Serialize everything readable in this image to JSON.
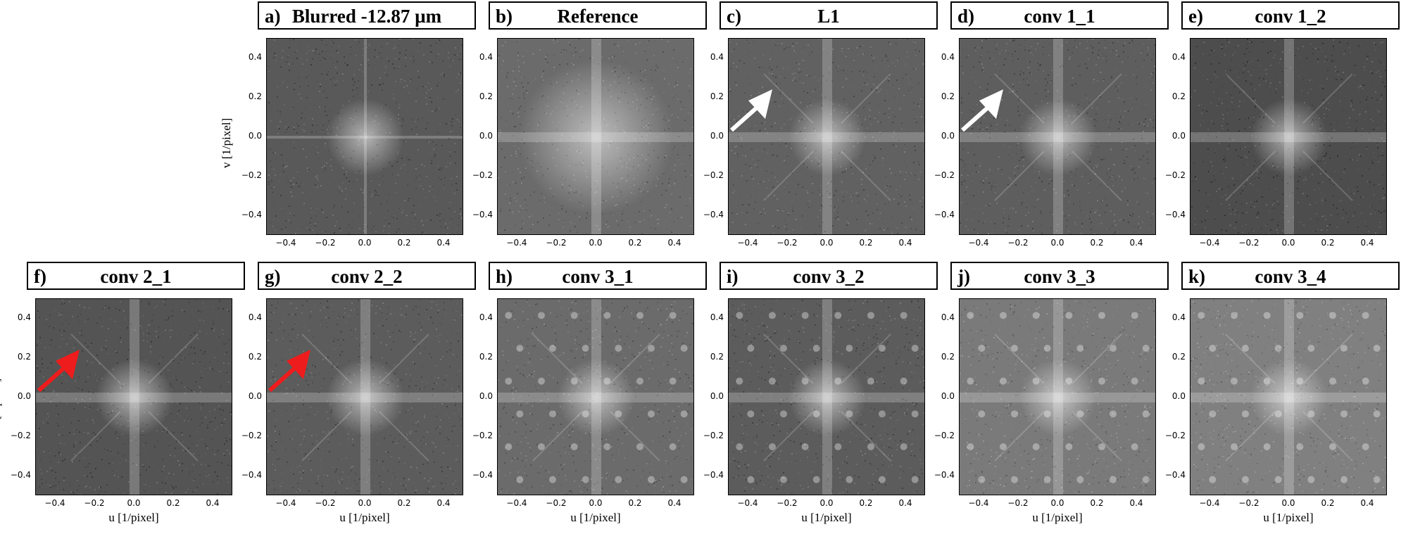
{
  "figure": {
    "ylabel": "v [1/pixel]",
    "xlabel": "u [1/pixel]",
    "ticks": [
      "−0.4",
      "−0.2",
      "0.0",
      "0.2",
      "0.4"
    ],
    "panels": [
      {
        "letter": "a)",
        "title": "Blurred -12.87 µm",
        "arrow": "",
        "pattern": false,
        "brightness": 0.35
      },
      {
        "letter": "b)",
        "title": "Reference",
        "arrow": "",
        "pattern": false,
        "brightness": 0.42
      },
      {
        "letter": "c)",
        "title": "L1",
        "arrow": "white",
        "pattern": false,
        "brightness": 0.38
      },
      {
        "letter": "d)",
        "title": "conv 1_1",
        "arrow": "white",
        "pattern": false,
        "brightness": 0.37
      },
      {
        "letter": "e)",
        "title": "conv 1_2",
        "arrow": "",
        "pattern": false,
        "brightness": 0.3
      },
      {
        "letter": "f)",
        "title": "conv 2_1",
        "arrow": "red",
        "pattern": false,
        "brightness": 0.33
      },
      {
        "letter": "g)",
        "title": "conv 2_2",
        "arrow": "red",
        "pattern": false,
        "brightness": 0.36
      },
      {
        "letter": "h)",
        "title": "conv 3_1",
        "arrow": "",
        "pattern": true,
        "brightness": 0.42
      },
      {
        "letter": "i)",
        "title": "conv 3_2",
        "arrow": "",
        "pattern": true,
        "brightness": 0.36
      },
      {
        "letter": "j)",
        "title": "conv 3_3",
        "arrow": "",
        "pattern": true,
        "brightness": 0.48
      },
      {
        "letter": "k)",
        "title": "conv 3_4",
        "arrow": "",
        "pattern": true,
        "brightness": 0.5
      }
    ]
  }
}
